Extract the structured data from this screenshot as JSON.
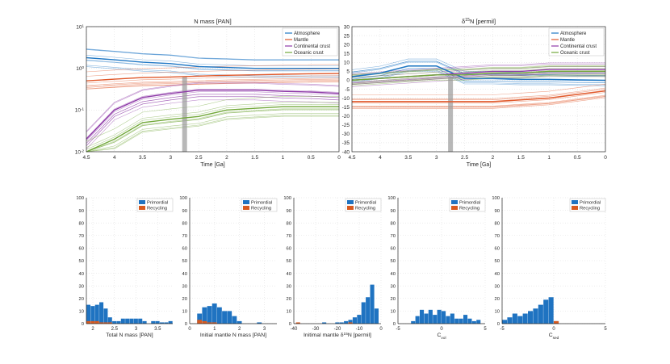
{
  "colors": {
    "atmosphere": "#1f77c4",
    "mantle": "#e0582a",
    "continental": "#8e3aa8",
    "oceanic": "#72a83a",
    "grey_band": "#9a9a9a",
    "primordial": "#1f73c1",
    "recycling": "#d85a1f",
    "axis": "#262626",
    "grid": "#d9d9d9"
  },
  "chart_data": [
    {
      "type": "line",
      "title": "N mass [PAN]",
      "xlabel": "Time [Ga]",
      "ylabel": "",
      "xlim": [
        4.5,
        0
      ],
      "ylim": [
        0.01,
        10
      ],
      "yscale": "log",
      "xticks": [
        "4.5",
        "4",
        "3.5",
        "3",
        "2.5",
        "2",
        "1.5",
        "1",
        "0.5",
        "0"
      ],
      "yticks": [
        "10^-2",
        "10^-1",
        "10^0",
        "10^1"
      ],
      "legend": [
        "Atmosphere",
        "Mantle",
        "Continental crust",
        "Oceanic crust"
      ],
      "legend_position": "top-right",
      "series": [
        {
          "name": "Atmosphere",
          "x": [
            4.5,
            4,
            3.5,
            3,
            2.5,
            2,
            1.5,
            1,
            0.5,
            0
          ],
          "y": [
            1.8,
            1.6,
            1.4,
            1.3,
            1.1,
            1.05,
            1.0,
            1.0,
            1.0,
            1.0
          ]
        },
        {
          "name": "Mantle",
          "x": [
            4.5,
            4,
            3.5,
            3,
            2.5,
            2,
            1.5,
            1,
            0.5,
            0
          ],
          "y": [
            0.5,
            0.55,
            0.6,
            0.62,
            0.65,
            0.68,
            0.7,
            0.72,
            0.74,
            0.75
          ]
        },
        {
          "name": "Continental crust",
          "x": [
            4.5,
            4,
            3.5,
            3,
            2.5,
            2,
            1.5,
            1,
            0.5,
            0
          ],
          "y": [
            0.02,
            0.1,
            0.2,
            0.25,
            0.3,
            0.3,
            0.3,
            0.28,
            0.27,
            0.25
          ]
        },
        {
          "name": "Oceanic crust",
          "x": [
            4.5,
            4,
            3.5,
            3,
            2.5,
            2,
            1.5,
            1,
            0.5,
            0
          ],
          "y": [
            0.01,
            0.02,
            0.05,
            0.06,
            0.07,
            0.1,
            0.11,
            0.12,
            0.12,
            0.12
          ]
        }
      ]
    },
    {
      "type": "line",
      "title": "δ15N [permil]",
      "xlabel": "Time [Ga]",
      "ylabel": "",
      "xlim": [
        4.5,
        0
      ],
      "ylim": [
        -40,
        30
      ],
      "xticks": [
        "4.5",
        "4",
        "3.5",
        "3",
        "2.5",
        "2",
        "1.5",
        "1",
        "0.5",
        "0"
      ],
      "yticks": [
        "-40",
        "-35",
        "-30",
        "-25",
        "-20",
        "-15",
        "-10",
        "-5",
        "0",
        "5",
        "10",
        "15",
        "20",
        "25",
        "30"
      ],
      "legend": [
        "Atmosphere",
        "Mantle",
        "Continental crust",
        "Oceanic crust"
      ],
      "legend_position": "top-right",
      "series": [
        {
          "name": "Atmosphere",
          "x": [
            4.5,
            4,
            3.5,
            3,
            2.5,
            2,
            1.5,
            1,
            0.5,
            0
          ],
          "y": [
            2,
            4,
            8,
            8,
            1,
            1,
            0.5,
            0.5,
            0.2,
            0
          ]
        },
        {
          "name": "Mantle",
          "x": [
            4.5,
            4,
            3.5,
            3,
            2.5,
            2,
            1.5,
            1,
            0.5,
            0
          ],
          "y": [
            -12,
            -12,
            -12,
            -12,
            -12,
            -12,
            -11,
            -10,
            -8,
            -6
          ]
        },
        {
          "name": "Continental crust",
          "x": [
            4.5,
            4,
            3.5,
            3,
            2.5,
            2,
            1.5,
            1,
            0.5,
            0
          ],
          "y": [
            0,
            1,
            2,
            3,
            4,
            5,
            5,
            6,
            6,
            6
          ]
        },
        {
          "name": "Oceanic crust",
          "x": [
            4.5,
            4,
            3.5,
            3,
            2.5,
            2,
            1.5,
            1,
            0.5,
            0
          ],
          "y": [
            0,
            1,
            2,
            3,
            3,
            4,
            4,
            5,
            5,
            5
          ]
        }
      ]
    },
    {
      "type": "bar",
      "title": "",
      "xlabel": "Total N mass [PAN]",
      "xlim": [
        1.85,
        3.85
      ],
      "ylim": [
        0,
        100
      ],
      "xticks": [
        "2",
        "2.5",
        "3",
        "3.5"
      ],
      "yticks": [
        "0",
        "10",
        "20",
        "30",
        "40",
        "50",
        "60",
        "70",
        "80",
        "90",
        "100"
      ],
      "legend": [
        "Primordial",
        "Recycling"
      ],
      "bin_edges": [
        1.85,
        1.95,
        2.05,
        2.15,
        2.25,
        2.35,
        2.45,
        2.55,
        2.65,
        2.75,
        2.85,
        2.95,
        3.05,
        3.15,
        3.25,
        3.35,
        3.45,
        3.55,
        3.65,
        3.75,
        3.85
      ],
      "series": [
        {
          "name": "Primordial",
          "values": [
            15,
            14,
            15,
            17,
            12,
            5,
            2,
            2,
            4,
            4,
            4,
            4,
            4,
            2,
            0,
            2,
            2,
            1,
            1,
            2
          ]
        },
        {
          "name": "Recycling",
          "values": [
            2,
            2,
            2,
            1,
            1,
            1,
            0,
            0,
            0,
            0,
            0,
            0,
            0,
            0,
            0,
            0,
            0,
            0,
            0,
            0
          ]
        }
      ]
    },
    {
      "type": "bar",
      "title": "",
      "xlabel": "Initial mantle N mass [PAN]",
      "xlim": [
        0,
        3.5
      ],
      "ylim": [
        0,
        100
      ],
      "xticks": [
        "0",
        "1",
        "2",
        "3"
      ],
      "yticks": [
        "0",
        "10",
        "20",
        "30",
        "40",
        "50",
        "60",
        "70",
        "80",
        "90",
        "100"
      ],
      "legend": [
        "Primordial",
        "Recycling"
      ],
      "bin_edges": [
        0.3,
        0.5,
        0.7,
        0.9,
        1.1,
        1.3,
        1.5,
        1.7,
        1.9,
        2.1,
        2.3,
        2.5,
        2.7,
        2.9,
        3.1
      ],
      "series": [
        {
          "name": "Primordial",
          "values": [
            8,
            13,
            14,
            16,
            13,
            10,
            10,
            6,
            2,
            0,
            0,
            0,
            1,
            0
          ]
        },
        {
          "name": "Recycling",
          "values": [
            3,
            2,
            1,
            1,
            0,
            0,
            0,
            0,
            0,
            0,
            0,
            0,
            0,
            0
          ]
        }
      ]
    },
    {
      "type": "bar",
      "title": "",
      "xlabel": "Initimal mantle δ15N [permil]",
      "xlim": [
        -40,
        0
      ],
      "ylim": [
        0,
        100
      ],
      "xticks": [
        "-40",
        "-30",
        "-20",
        "-10",
        "0"
      ],
      "yticks": [
        "0",
        "10",
        "20",
        "30",
        "40",
        "50",
        "60",
        "70",
        "80",
        "90",
        "100"
      ],
      "legend": [
        "Primordial",
        "Recycling"
      ],
      "bin_edges": [
        -39,
        -37,
        -35,
        -33,
        -31,
        -29,
        -27,
        -25,
        -23,
        -21,
        -19,
        -17,
        -15,
        -13,
        -11,
        -9,
        -7,
        -5,
        -3,
        -1
      ],
      "series": [
        {
          "name": "Primordial",
          "values": [
            0,
            0,
            0,
            0,
            0,
            0,
            1,
            0,
            0,
            1,
            1,
            2,
            3,
            5,
            7,
            17,
            21,
            31,
            12
          ]
        },
        {
          "name": "Recycling",
          "values": [
            1,
            0,
            0,
            0,
            0,
            0,
            0,
            0,
            0,
            0,
            0,
            0,
            1,
            0,
            0,
            0,
            0,
            0,
            0
          ]
        }
      ]
    },
    {
      "type": "bar",
      "title": "",
      "xlabel": "C_vol",
      "xlim": [
        -5,
        5
      ],
      "ylim": [
        0,
        100
      ],
      "xticks": [
        "-5",
        "0",
        "5"
      ],
      "yticks": [
        "0",
        "10",
        "20",
        "30",
        "40",
        "50",
        "60",
        "70",
        "80",
        "90",
        "100"
      ],
      "legend": [
        "Primordial",
        "Recycling"
      ],
      "bin_edges": [
        -3.5,
        -3,
        -2.5,
        -2,
        -1.5,
        -1,
        -0.5,
        0,
        0.5,
        1,
        1.5,
        2,
        2.5,
        3,
        3.5,
        4,
        4.5
      ],
      "series": [
        {
          "name": "Primordial",
          "values": [
            2,
            6,
            11,
            8,
            11,
            7,
            11,
            10,
            6,
            8,
            4,
            4,
            7,
            4,
            2,
            3
          ]
        },
        {
          "name": "Recycling",
          "values": [
            0,
            0,
            0,
            0,
            0,
            0,
            0,
            0,
            0,
            0,
            0,
            0,
            0,
            0,
            0,
            0
          ]
        }
      ]
    },
    {
      "type": "bar",
      "title": "",
      "xlabel": "C_sed",
      "xlim": [
        -5,
        5
      ],
      "ylim": [
        0,
        100
      ],
      "xticks": [
        "-5",
        "0",
        "5"
      ],
      "yticks": [
        "0",
        "10",
        "20",
        "30",
        "40",
        "50",
        "60",
        "70",
        "80",
        "90",
        "100"
      ],
      "legend": [
        "Primordial",
        "Recycling"
      ],
      "bin_edges": [
        -5,
        -4.5,
        -4,
        -3.5,
        -3,
        -2.5,
        -2,
        -1.5,
        -1,
        -0.5,
        0,
        0.5
      ],
      "series": [
        {
          "name": "Primordial",
          "values": [
            3,
            5,
            8,
            6,
            8,
            10,
            12,
            15,
            19,
            21,
            2
          ]
        },
        {
          "name": "Recycling",
          "values": [
            0,
            0,
            0,
            0,
            0,
            0,
            0,
            0,
            0,
            0,
            2
          ]
        }
      ]
    }
  ]
}
